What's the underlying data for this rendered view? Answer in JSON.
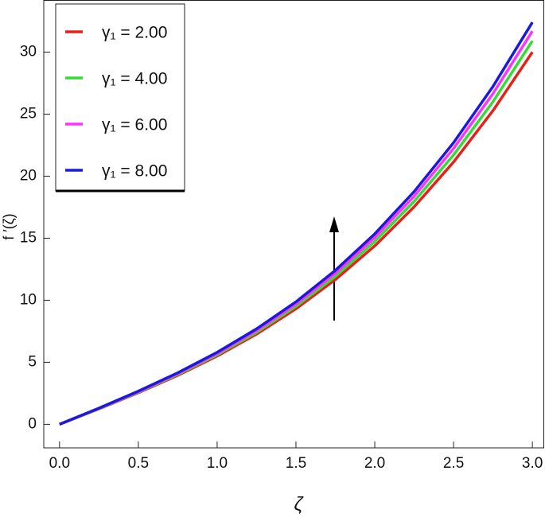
{
  "chart_data": {
    "type": "line",
    "xlabel": "ζ",
    "ylabel": "f ′(ζ)",
    "x": [
      0,
      0.25,
      0.5,
      0.75,
      1,
      1.25,
      1.5,
      1.75,
      2,
      2.25,
      2.5,
      2.75,
      3
    ],
    "series": [
      {
        "name": "γ₁ = 2.00",
        "color": "#e8201a",
        "values": [
          0,
          1.24,
          2.54,
          3.94,
          5.5,
          7.27,
          9.31,
          11.66,
          14.38,
          17.53,
          21.14,
          25.28,
          30.0
        ]
      },
      {
        "name": "γ₁ = 4.00",
        "color": "#33dd33",
        "values": [
          0,
          1.26,
          2.58,
          4.01,
          5.6,
          7.41,
          9.5,
          11.92,
          14.73,
          17.97,
          21.71,
          26.0,
          30.9
        ]
      },
      {
        "name": "γ₁ = 6.00",
        "color": "#ff33ff",
        "values": [
          0,
          1.28,
          2.62,
          4.08,
          5.7,
          7.55,
          9.69,
          12.17,
          15.05,
          18.38,
          22.23,
          26.65,
          31.69
        ]
      },
      {
        "name": "γ₁ = 8.00",
        "color": "#1a1adf",
        "values": [
          0,
          1.3,
          2.67,
          4.15,
          5.8,
          7.69,
          9.87,
          12.41,
          15.35,
          18.76,
          22.7,
          27.23,
          32.4
        ]
      }
    ],
    "xlim": [
      -0.1,
      3.07
    ],
    "ylim": [
      -1.9,
      34.2
    ],
    "xticks": [
      {
        "value": 0,
        "label": "0.0"
      },
      {
        "value": 0.5,
        "label": "0.5"
      },
      {
        "value": 1,
        "label": "1.0"
      },
      {
        "value": 1.5,
        "label": "1.5"
      },
      {
        "value": 2,
        "label": "2.0"
      },
      {
        "value": 2.5,
        "label": "2.5"
      },
      {
        "value": 3,
        "label": "3.0"
      }
    ],
    "yticks": [
      0,
      5,
      10,
      15,
      20,
      25,
      30
    ],
    "legend": "upper left",
    "grid": false
  }
}
